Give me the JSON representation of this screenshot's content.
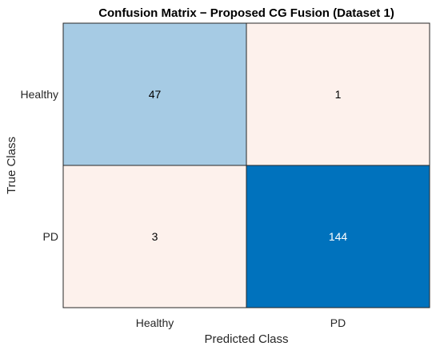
{
  "chart_data": {
    "type": "heatmap",
    "title": "Confusion Matrix − Proposed CG Fusion (Dataset 1)",
    "xlabel": "Predicted Class",
    "ylabel": "True Class",
    "x_categories": [
      "Healthy",
      "PD"
    ],
    "y_categories": [
      "Healthy",
      "PD"
    ],
    "values": [
      [
        47,
        1
      ],
      [
        3,
        144
      ]
    ],
    "cell_labels": [
      [
        "47",
        "1"
      ],
      [
        "3",
        "144"
      ]
    ],
    "cell_colors": [
      [
        "#a6cbe4",
        "#fdf1ec"
      ],
      [
        "#fdf1ec",
        "#0072bd"
      ]
    ],
    "cell_text_colors": [
      [
        "#000000",
        "#000000"
      ],
      [
        "#000000",
        "#ffffff"
      ]
    ],
    "grid": false
  }
}
